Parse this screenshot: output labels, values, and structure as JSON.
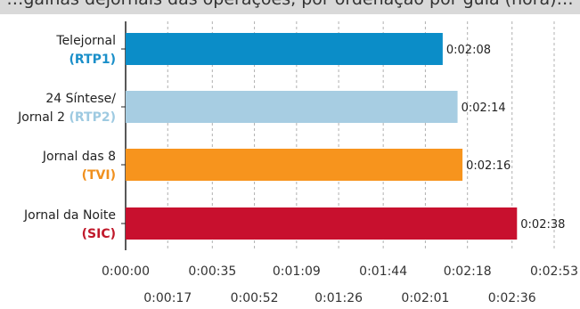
{
  "header_text": "…galhas dejornais das operações, por ordenação por guia (hora)…",
  "chart_data": {
    "type": "bar",
    "orientation": "horizontal",
    "categories": [
      {
        "line1": "Telejornal",
        "line2_prefix": "",
        "network": "(RTP1)",
        "network_color": "#1a8fc9"
      },
      {
        "line1": "24 Síntese/",
        "line2_prefix": "Jornal 2 ",
        "network": "(RTP2)",
        "network_color": "#9ecae1"
      },
      {
        "line1": "Jornal das 8",
        "line2_prefix": "",
        "network": "(TVI)",
        "network_color": "#f0901e"
      },
      {
        "line1": "Jornal da Noite",
        "line2_prefix": "",
        "network": "(SIC)",
        "network_color": "#c0182a"
      }
    ],
    "values": [
      128,
      134,
      136,
      158
    ],
    "value_labels": [
      "0:02:08",
      "0:02:14",
      "0:02:16",
      "0:02:38"
    ],
    "bar_colors": [
      "#0b8dc8",
      "#a7cde2",
      "#f7941d",
      "#c8102e"
    ],
    "x_ticks_major": [
      {
        "value": 0,
        "label": "0:00:00"
      },
      {
        "value": 35,
        "label": "0:00:35"
      },
      {
        "value": 69,
        "label": "0:01:09"
      },
      {
        "value": 104,
        "label": "0:01:44"
      },
      {
        "value": 138,
        "label": "0:02:18"
      },
      {
        "value": 173,
        "label": "0:02:53"
      }
    ],
    "x_ticks_minor": [
      {
        "value": 17,
        "label": "0:00:17"
      },
      {
        "value": 52,
        "label": "0:00:52"
      },
      {
        "value": 86,
        "label": "0:01:26"
      },
      {
        "value": 121,
        "label": "0:02:01"
      },
      {
        "value": 156,
        "label": "0:02:36"
      }
    ],
    "xlim": [
      0,
      173
    ],
    "grid": true,
    "title": "",
    "xlabel": "",
    "ylabel": ""
  }
}
